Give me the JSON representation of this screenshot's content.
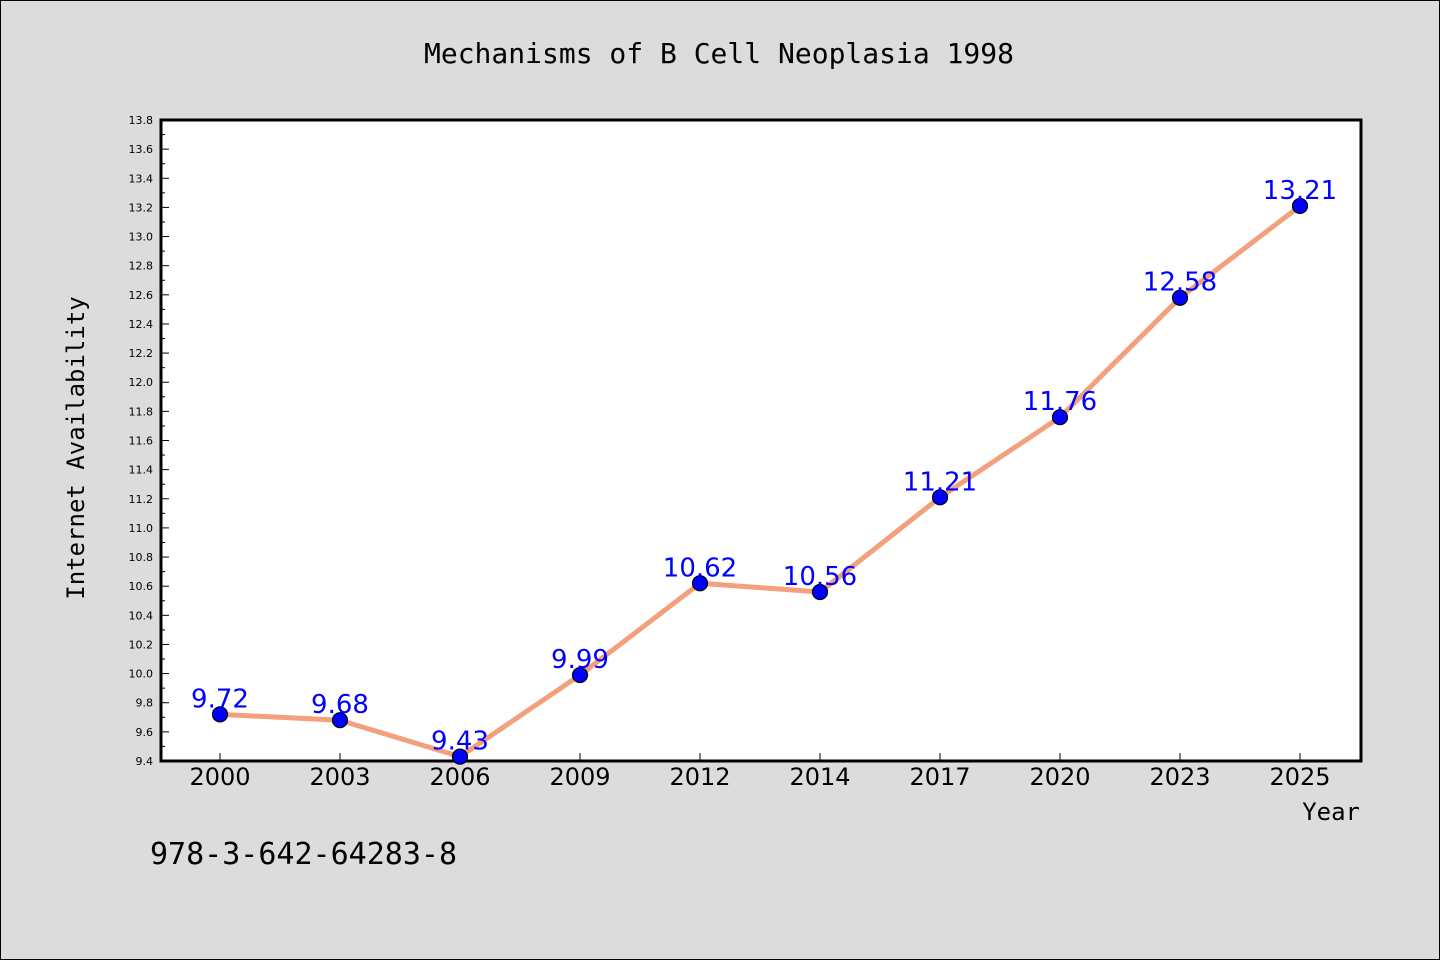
{
  "chart_data": {
    "type": "line",
    "title": "Mechanisms of B Cell Neoplasia 1998",
    "xlabel": "Year",
    "ylabel": "Internet Availability",
    "categories": [
      "2000",
      "2003",
      "2006",
      "2009",
      "2012",
      "2014",
      "2017",
      "2020",
      "2023",
      "2025"
    ],
    "series": [
      {
        "values": [
          9.72,
          9.68,
          9.43,
          9.99,
          10.62,
          10.56,
          11.21,
          11.76,
          12.58,
          13.21
        ],
        "data_labels": [
          "9.72",
          "9.68",
          "9.43",
          "9.99",
          "10.62",
          "10.56",
          "11.21",
          "11.76",
          "12.58",
          "13.21"
        ],
        "line_color": "#f4a07c",
        "marker_color": "#0000ff"
      }
    ],
    "ylim": [
      9.4,
      13.8
    ],
    "yticks": [
      "9.4",
      "9.6",
      "9.8",
      "10.0",
      "10.2",
      "10.4",
      "10.6",
      "10.8",
      "11.0",
      "11.2",
      "11.4",
      "11.6",
      "11.8",
      "12.0",
      "12.2",
      "12.4",
      "12.6",
      "12.8",
      "13.0",
      "13.2",
      "13.4",
      "13.6",
      "13.8"
    ],
    "grid": false,
    "legend": "none"
  },
  "annotation": "978-3-642-64283-8"
}
